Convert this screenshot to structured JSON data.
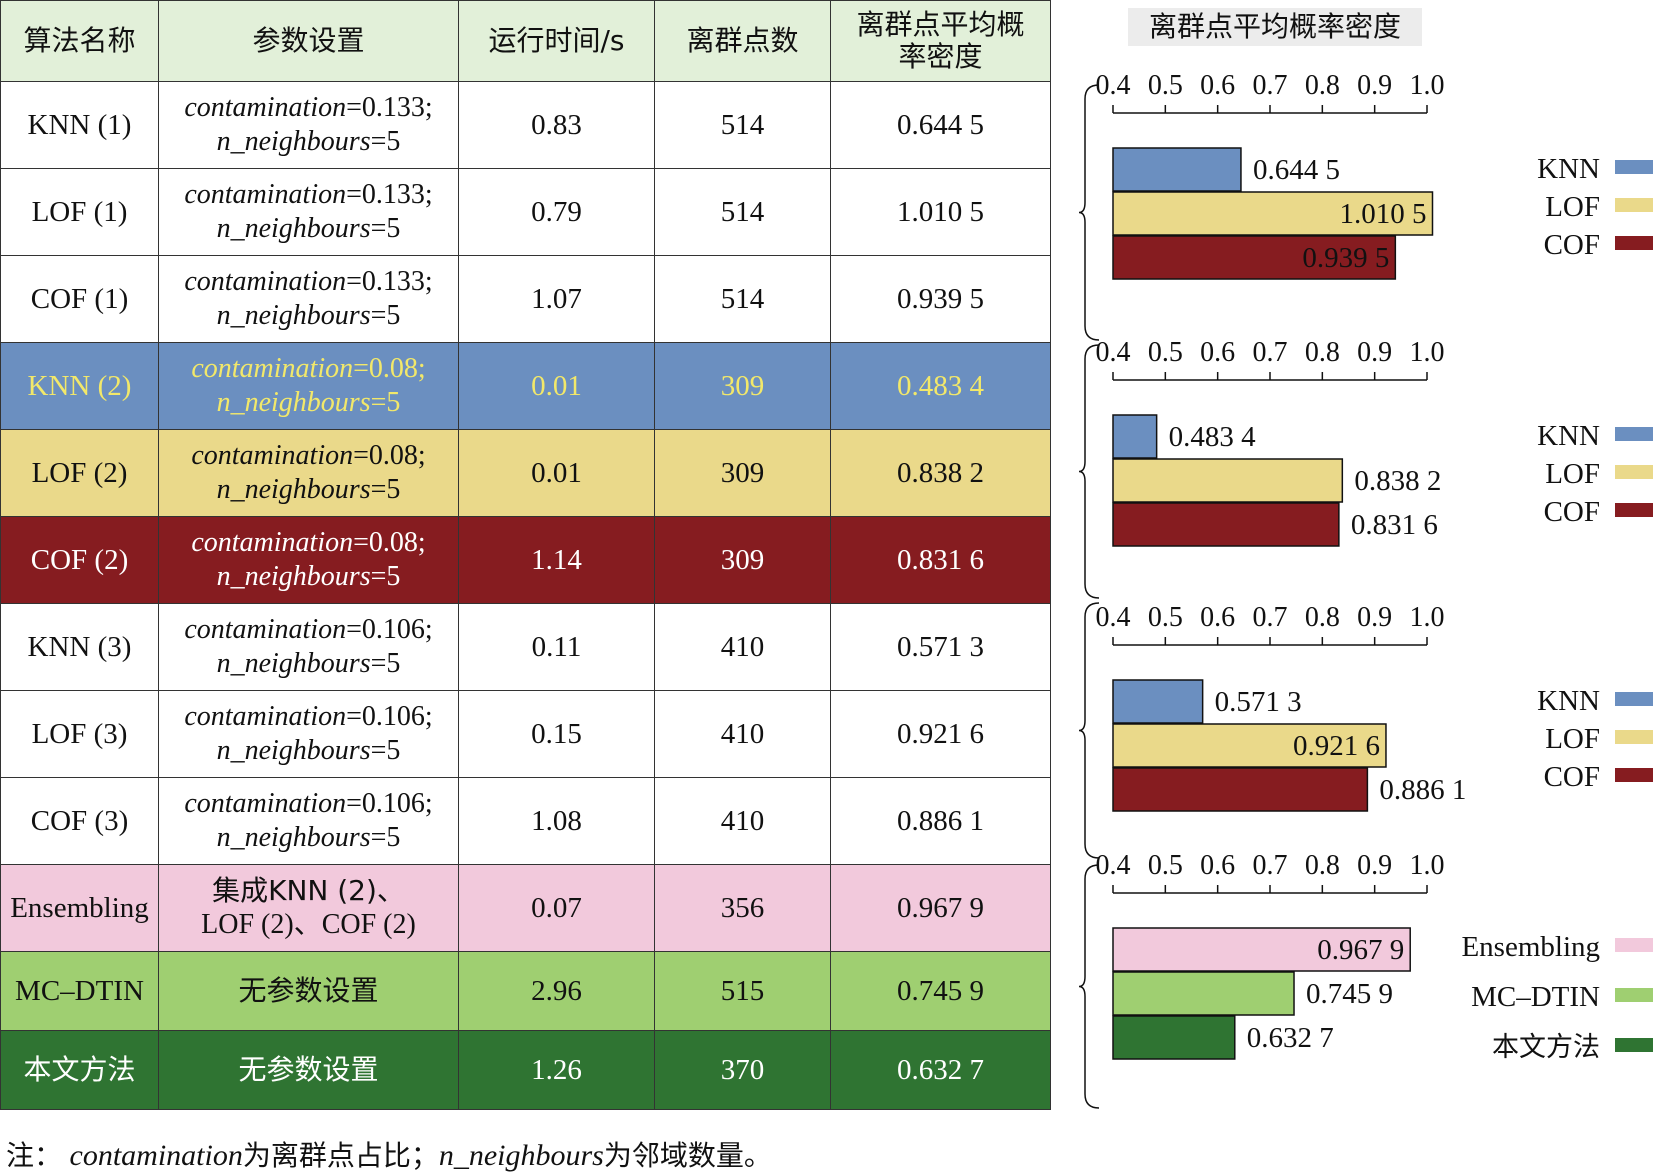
{
  "table": {
    "headers": [
      "算法名称",
      "参数设置",
      "运行时间/s",
      "离群点数",
      "离群点平均概率密度"
    ],
    "rows": [
      {
        "name": "KNN (1)",
        "param_1_key": "contamination",
        "param_1_val": "=0.133;",
        "param_2_key": "n_neighbours",
        "param_2_val": "=5",
        "time": "0.83",
        "count": "514",
        "density": "0.644 5",
        "bg": "#ffffff",
        "fg": "#111111"
      },
      {
        "name": "LOF (1)",
        "param_1_key": "contamination",
        "param_1_val": "=0.133;",
        "param_2_key": "n_neighbours",
        "param_2_val": "=5",
        "time": "0.79",
        "count": "514",
        "density": "1.010 5",
        "bg": "#ffffff",
        "fg": "#111111"
      },
      {
        "name": "COF (1)",
        "param_1_key": "contamination",
        "param_1_val": "=0.133;",
        "param_2_key": "n_neighbours",
        "param_2_val": "=5",
        "time": "1.07",
        "count": "514",
        "density": "0.939 5",
        "bg": "#ffffff",
        "fg": "#111111"
      },
      {
        "name": "KNN (2)",
        "param_1_key": "contamination",
        "param_1_val": "=0.08;",
        "param_2_key": "n_neighbours",
        "param_2_val": "=5",
        "time": "0.01",
        "count": "309",
        "density": "0.483 4",
        "bg": "#6b8fc0",
        "fg": "#f2e86a"
      },
      {
        "name": "LOF (2)",
        "param_1_key": "contamination",
        "param_1_val": "=0.08;",
        "param_2_key": "n_neighbours",
        "param_2_val": "=5",
        "time": "0.01",
        "count": "309",
        "density": "0.838 2",
        "bg": "#ead98a",
        "fg": "#111111"
      },
      {
        "name": "COF (2)",
        "param_1_key": "contamination",
        "param_1_val": "=0.08;",
        "param_2_key": "n_neighbours",
        "param_2_val": "=5",
        "time": "1.14",
        "count": "309",
        "density": "0.831 6",
        "bg": "#861c20",
        "fg": "#ffffff"
      },
      {
        "name": "KNN (3)",
        "param_1_key": "contamination",
        "param_1_val": "=0.106;",
        "param_2_key": "n_neighbours",
        "param_2_val": "=5",
        "time": "0.11",
        "count": "410",
        "density": "0.571 3",
        "bg": "#ffffff",
        "fg": "#111111"
      },
      {
        "name": "LOF (3)",
        "param_1_key": "contamination",
        "param_1_val": "=0.106;",
        "param_2_key": "n_neighbours",
        "param_2_val": "=5",
        "time": "0.15",
        "count": "410",
        "density": "0.921 6",
        "bg": "#ffffff",
        "fg": "#111111"
      },
      {
        "name": "COF (3)",
        "param_1_key": "contamination",
        "param_1_val": "=0.106;",
        "param_2_key": "n_neighbours",
        "param_2_val": "=5",
        "time": "1.08",
        "count": "410",
        "density": "0.886 1",
        "bg": "#ffffff",
        "fg": "#111111"
      },
      {
        "name": "Ensembling",
        "param_text_1": "集成KNN (2)、",
        "param_text_2": "LOF (2)、COF (2)",
        "time": "0.07",
        "count": "356",
        "density": "0.967 9",
        "bg": "#f2c9dc",
        "fg": "#111111"
      },
      {
        "name": "MC–DTIN",
        "param_text_1": "无参数设置",
        "time": "2.96",
        "count": "515",
        "density": "0.745 9",
        "bg": "#9fcf71",
        "fg": "#111111"
      },
      {
        "name": "本文方法",
        "param_text_1": "无参数设置",
        "time": "1.26",
        "count": "370",
        "density": "0.632 7",
        "bg": "#2f7432",
        "fg": "#ffffff"
      }
    ]
  },
  "note": {
    "prefix": "注：",
    "term_1": "contamination",
    "desc_1": "为离群点占比；",
    "term_2": "n_neighbours",
    "desc_2": "为邻域数量。"
  },
  "chart_data": {
    "type": "bar",
    "orientation": "horizontal",
    "title": "离群点平均概率密度",
    "xlim": [
      0.4,
      1.0
    ],
    "xticks": [
      "0.4",
      "0.5",
      "0.6",
      "0.7",
      "0.8",
      "0.9",
      "1.0"
    ],
    "xtick_values": [
      0.4,
      0.5,
      0.6,
      0.7,
      0.8,
      0.9,
      1.0
    ],
    "groups": [
      {
        "bars": [
          {
            "label": "KNN",
            "value": 0.6445,
            "text": "0.644 5",
            "color": "#6b8fc0"
          },
          {
            "label": "LOF",
            "value": 1.0105,
            "text": "1.010 5",
            "color": "#ead98a"
          },
          {
            "label": "COF",
            "value": 0.9395,
            "text": "0.939 5",
            "color": "#861c20"
          }
        ]
      },
      {
        "bars": [
          {
            "label": "KNN",
            "value": 0.4834,
            "text": "0.483 4",
            "color": "#6b8fc0"
          },
          {
            "label": "LOF",
            "value": 0.8382,
            "text": "0.838 2",
            "color": "#ead98a"
          },
          {
            "label": "COF",
            "value": 0.8316,
            "text": "0.831 6",
            "color": "#861c20"
          }
        ]
      },
      {
        "bars": [
          {
            "label": "KNN",
            "value": 0.5713,
            "text": "0.571 3",
            "color": "#6b8fc0"
          },
          {
            "label": "LOF",
            "value": 0.9216,
            "text": "0.921 6",
            "color": "#ead98a"
          },
          {
            "label": "COF",
            "value": 0.8861,
            "text": "0.886 1",
            "color": "#861c20"
          }
        ]
      },
      {
        "bars": [
          {
            "label": "Ensembling",
            "value": 0.9679,
            "text": "0.967 9",
            "color": "#f2c9dc"
          },
          {
            "label": "MC–DTIN",
            "value": 0.7459,
            "text": "0.745 9",
            "color": "#9fcf71"
          },
          {
            "label": "本文方法",
            "value": 0.6327,
            "text": "0.632 7",
            "color": "#2f7432"
          }
        ]
      }
    ]
  }
}
